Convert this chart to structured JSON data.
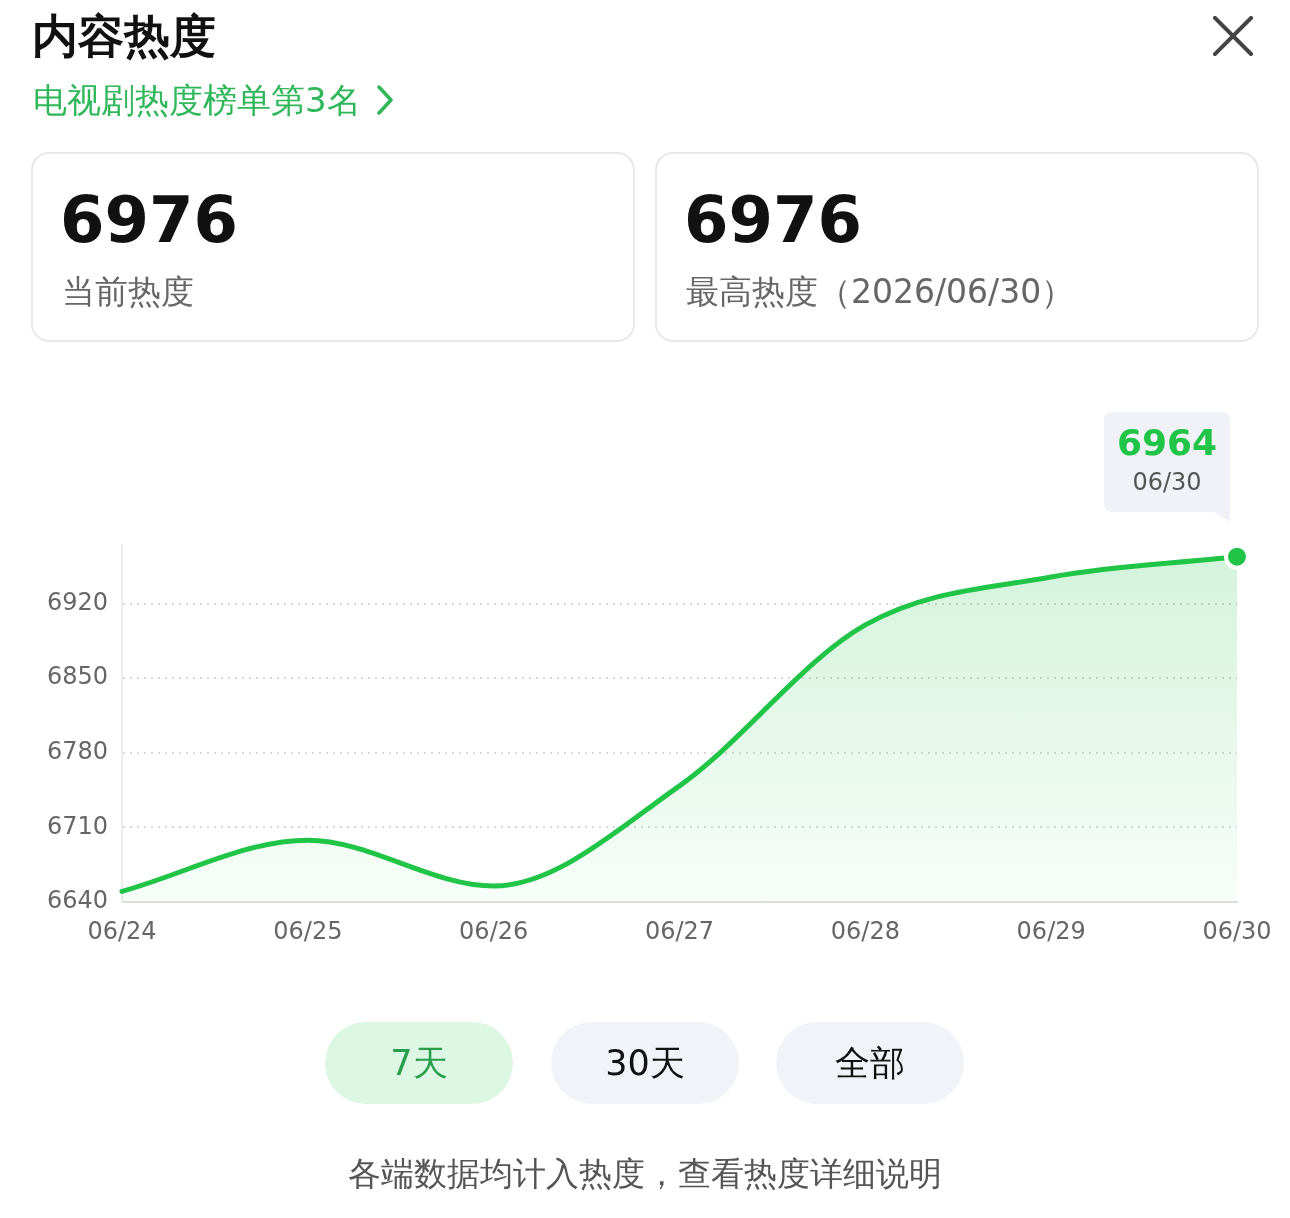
{
  "chart_data": {
    "type": "area",
    "title": "内容热度",
    "subtitle": "电视剧热度榜单第3名",
    "categories": [
      "06/24",
      "06/25",
      "06/26",
      "06/27",
      "06/28",
      "06/29",
      "06/30"
    ],
    "values": [
      6650,
      6698,
      6655,
      6749,
      6900,
      6945,
      6964
    ],
    "color": "#20c447",
    "value_labels": [
      null,
      null,
      null,
      null,
      null,
      null,
      "6964"
    ],
    "ylim": [
      6640,
      6975
    ],
    "yticks": [
      6640,
      6710,
      6780,
      6850,
      6920
    ],
    "grid": "y",
    "marker": "none",
    "line_style": "solid",
    "annotations": [
      "6976",
      "当前热度",
      "6976",
      "最高热度（2026/06/30）",
      {
        "text": "06/30",
        "x": "06/30",
        "y": 6964
      },
      "7天",
      "30天",
      "全部",
      "各端数据均计入热度，查看热度详细说明"
    ]
  }
}
